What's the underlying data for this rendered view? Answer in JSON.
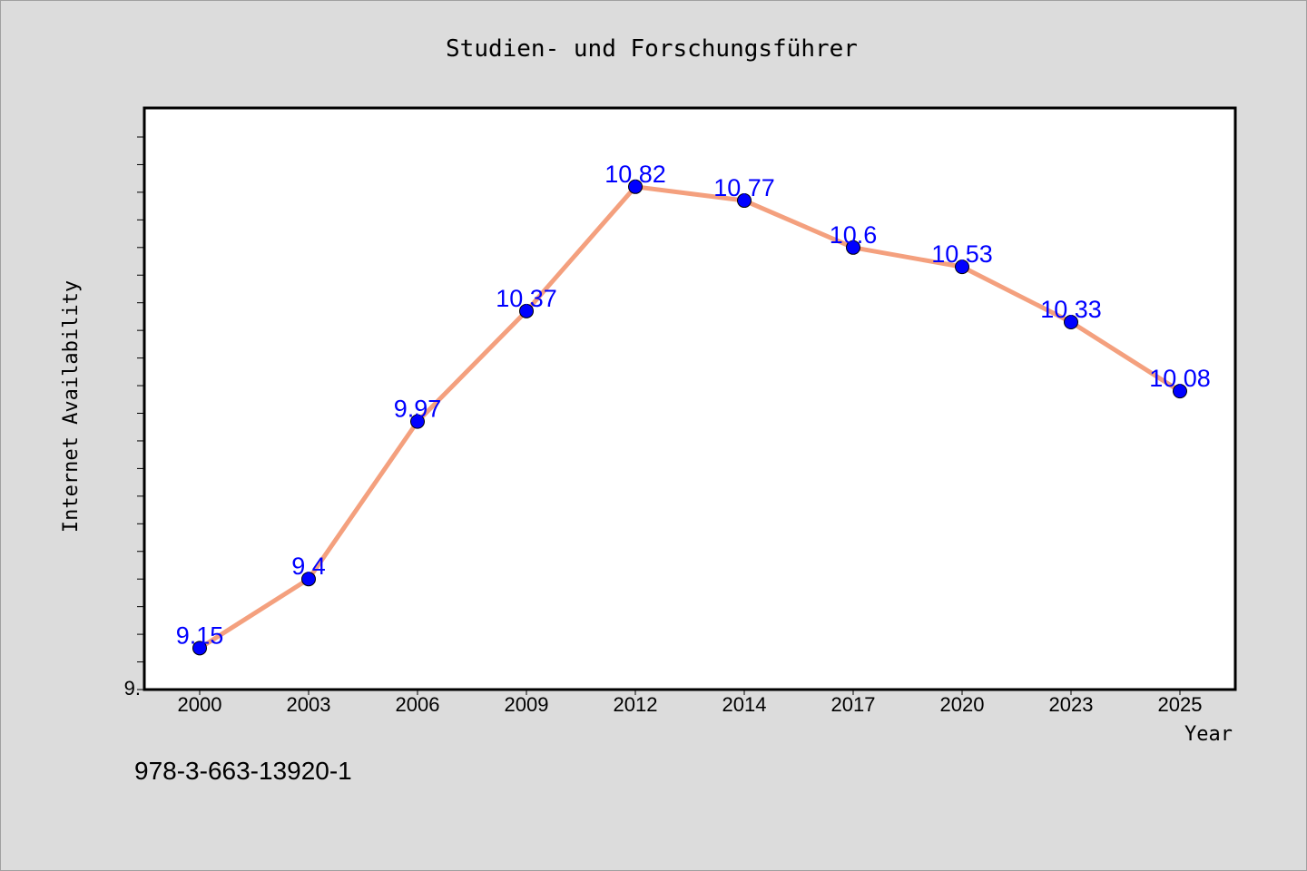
{
  "chart_data": {
    "type": "line",
    "title": "Studien- und Forschungsführer",
    "xlabel": "Year",
    "ylabel": "Internet Availability",
    "categories": [
      "2000",
      "2003",
      "2006",
      "2009",
      "2012",
      "2014",
      "2017",
      "2020",
      "2023",
      "2025"
    ],
    "series": [
      {
        "values": [
          9.15,
          9.4,
          9.97,
          10.37,
          10.82,
          10.77,
          10.6,
          10.53,
          10.33,
          10.08
        ],
        "labels": [
          "9.15",
          "9.4",
          "9.97",
          "10.37",
          "10.82",
          "10.77",
          "10.6",
          "10.53",
          "10.33",
          "10.08"
        ]
      }
    ],
    "ylim": [
      9.0,
      11.0
    ],
    "y_tick_labels": [
      {
        "value": 9.0,
        "text": "9."
      }
    ],
    "grid": false,
    "line_color": "#f4a07e",
    "marker_color": "#0000ff",
    "label_color": "#0000ff"
  },
  "footer": {
    "isbn": "978-3-663-13920-1"
  }
}
